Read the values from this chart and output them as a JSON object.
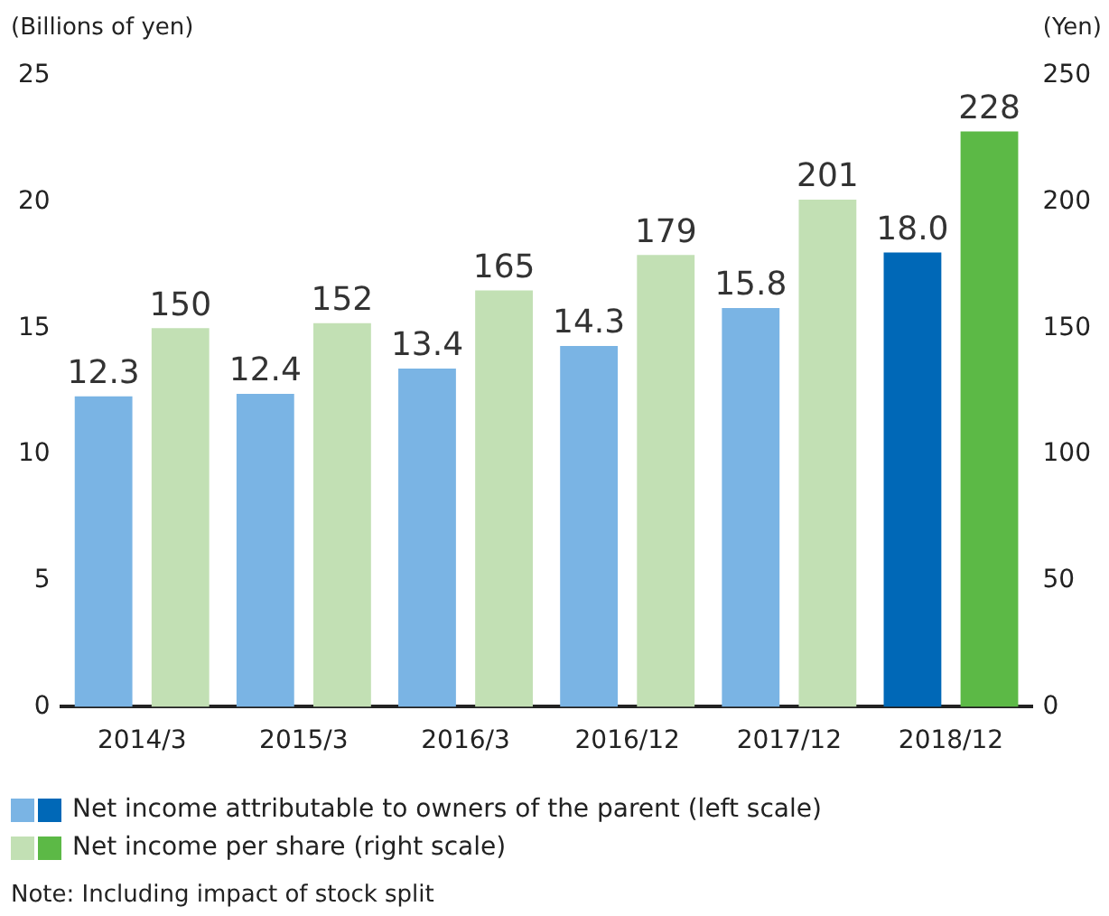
{
  "chart_data": {
    "type": "bar",
    "ylabel": "(Billions of yen)",
    "y2label": "(Yen)",
    "categories": [
      "2014/3",
      "2015/3",
      "2016/3",
      "2016/12",
      "2017/12",
      "2018/12"
    ],
    "series": [
      {
        "name": "Net income attributable to owners of the parent (left scale)",
        "colors": [
          "#7ab4e4",
          "#7ab4e4",
          "#7ab4e4",
          "#7ab4e4",
          "#7ab4e4",
          "#0068b7"
        ],
        "values": [
          12.3,
          12.4,
          13.4,
          14.3,
          15.8,
          18.0
        ],
        "value_labels": [
          "12.3",
          "12.4",
          "13.4",
          "14.3",
          "15.8",
          "18.0"
        ]
      },
      {
        "name": "Net income per share (right scale)",
        "axis": "y2",
        "colors": [
          "#c2e0b4",
          "#c2e0b4",
          "#c2e0b4",
          "#c2e0b4",
          "#c2e0b4",
          "#5cb946"
        ],
        "values": [
          150,
          152,
          165,
          179,
          201,
          228
        ],
        "value_labels": [
          "150",
          "152",
          "165",
          "179",
          "201",
          "228"
        ]
      }
    ],
    "ylim": [
      0,
      25
    ],
    "yticks": [
      0,
      5,
      10,
      15,
      20,
      25
    ],
    "y2lim": [
      0,
      250
    ],
    "y2ticks": [
      0,
      50,
      100,
      150,
      200,
      250
    ],
    "grid": false,
    "legend": "bottom",
    "annotations": [
      "Note: Including impact of stock split"
    ]
  }
}
